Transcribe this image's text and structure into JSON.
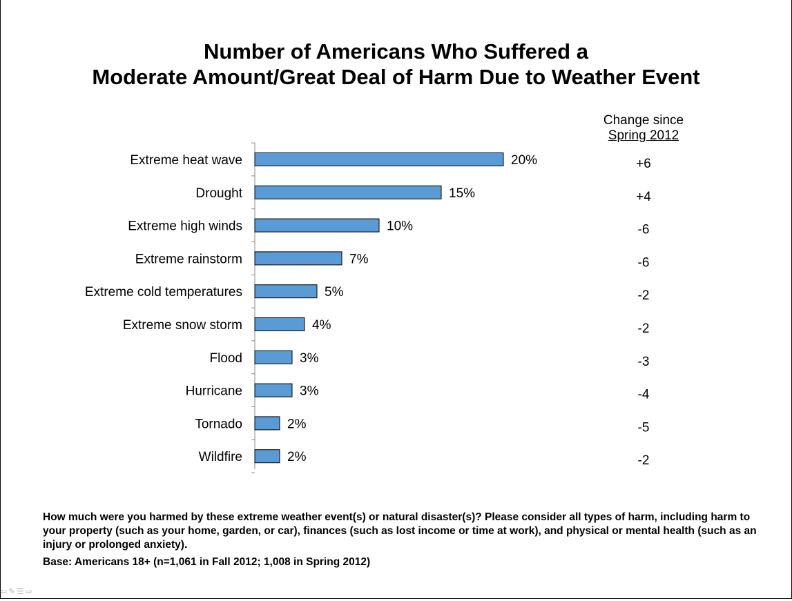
{
  "title": {
    "line1": "Number of Americans Who Suffered a",
    "line2": "Moderate Amount/Great Deal of Harm Due to Weather Event"
  },
  "change_header": {
    "line1": "Change since",
    "line2": "Spring 2012"
  },
  "chart_data": {
    "type": "bar",
    "orientation": "horizontal",
    "categories": [
      "Extreme heat wave",
      "Drought",
      "Extreme high winds",
      "Extreme rainstorm",
      "Extreme cold temperatures",
      "Extreme snow storm",
      "Flood",
      "Hurricane",
      "Tornado",
      "Wildfire"
    ],
    "values": [
      20,
      15,
      10,
      7,
      5,
      4,
      3,
      3,
      2,
      2
    ],
    "value_labels": [
      "20%",
      "15%",
      "10%",
      "7%",
      "5%",
      "4%",
      "3%",
      "3%",
      "2%",
      "2%"
    ],
    "change_since_spring_2012": [
      "+6",
      "+4",
      "-6",
      "-6",
      "-2",
      "-2",
      "-3",
      "-4",
      "-5",
      "-2"
    ],
    "bar_color": "#5b9bd5",
    "xlim": [
      0,
      100
    ],
    "grid": false,
    "legend": "none"
  },
  "footnotes": {
    "question": "How much were you harmed by these extreme weather event(s) or natural disaster(s)? Please consider all types of harm, including harm to your property (such as your home, garden, or car), finances (such as lost income or time at work), and physical or mental health (such as an injury or prolonged anxiety).",
    "base": "Base: Americans 18+ (n=1,061 in Fall 2012; 1,008 in Spring 2012)"
  },
  "nav_icons": [
    "back-arrow-icon",
    "pencil-icon",
    "menu-icon",
    "forward-arrow-icon"
  ]
}
